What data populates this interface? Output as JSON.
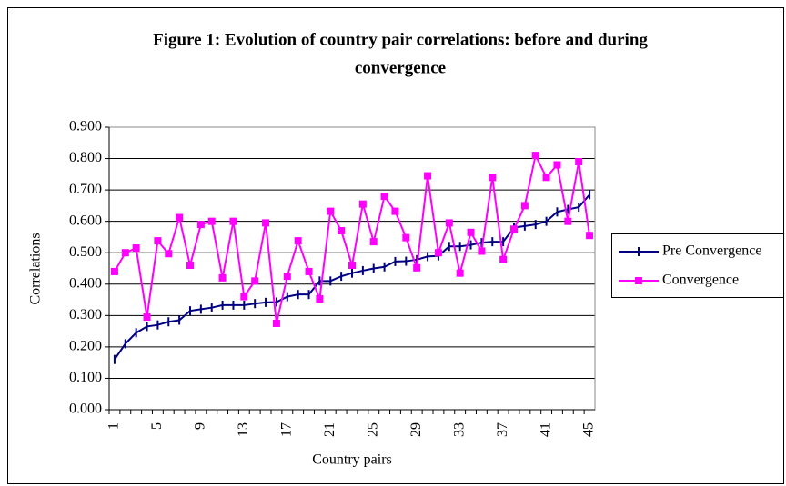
{
  "chart_data": {
    "type": "line",
    "title": "Figure 1: Evolution of country pair correlations: before and during convergence",
    "x_label": "Country pairs",
    "y_label": "Correlations",
    "categories": [
      1,
      null,
      null,
      null,
      5,
      null,
      null,
      null,
      9,
      null,
      null,
      null,
      13,
      null,
      null,
      null,
      17,
      null,
      null,
      null,
      21,
      null,
      null,
      null,
      25,
      null,
      null,
      null,
      29,
      null,
      null,
      null,
      33,
      null,
      null,
      null,
      37,
      null,
      null,
      null,
      41,
      null,
      null,
      null,
      45
    ],
    "series": [
      {
        "name": "Pre Convergence",
        "color": "#000080",
        "marker": "dash",
        "values": [
          0.16,
          0.21,
          0.245,
          0.265,
          0.27,
          0.28,
          0.285,
          0.315,
          0.32,
          0.325,
          0.333,
          0.333,
          0.333,
          0.338,
          0.342,
          0.343,
          0.36,
          0.367,
          0.367,
          0.41,
          0.41,
          0.425,
          0.435,
          0.443,
          0.45,
          0.455,
          0.472,
          0.473,
          0.478,
          0.488,
          0.49,
          0.52,
          0.52,
          0.525,
          0.532,
          0.535,
          0.535,
          0.58,
          0.585,
          0.59,
          0.6,
          0.63,
          0.638,
          0.645,
          0.685
        ]
      },
      {
        "name": "Convergence",
        "color": "#ff00ff",
        "marker": "square",
        "values": [
          0.44,
          0.5,
          0.515,
          0.295,
          0.538,
          0.497,
          0.612,
          0.46,
          0.59,
          0.6,
          0.42,
          0.6,
          0.36,
          0.41,
          0.595,
          0.275,
          0.425,
          0.538,
          0.44,
          0.353,
          0.632,
          0.57,
          0.46,
          0.655,
          0.535,
          0.68,
          0.632,
          0.548,
          0.452,
          0.745,
          0.5,
          0.595,
          0.435,
          0.565,
          0.505,
          0.74,
          0.478,
          0.575,
          0.65,
          0.81,
          0.74,
          0.78,
          0.6,
          0.79,
          0.555
        ]
      }
    ],
    "ylim": [
      0,
      0.9
    ],
    "yticks": [
      {
        "value": 0,
        "label": "0.000"
      },
      {
        "value": 0.1,
        "label": "0.100"
      },
      {
        "value": 0.2,
        "label": "0.200"
      },
      {
        "value": 0.3,
        "label": "0.300"
      },
      {
        "value": 0.4,
        "label": "0.400"
      },
      {
        "value": 0.5,
        "label": "0.500"
      },
      {
        "value": 0.6,
        "label": "0.600"
      },
      {
        "value": 0.7,
        "label": "0.700"
      },
      {
        "value": 0.8,
        "label": "0.800"
      },
      {
        "value": 0.9,
        "label": "0.900"
      }
    ],
    "grid": true,
    "legend": "right"
  }
}
